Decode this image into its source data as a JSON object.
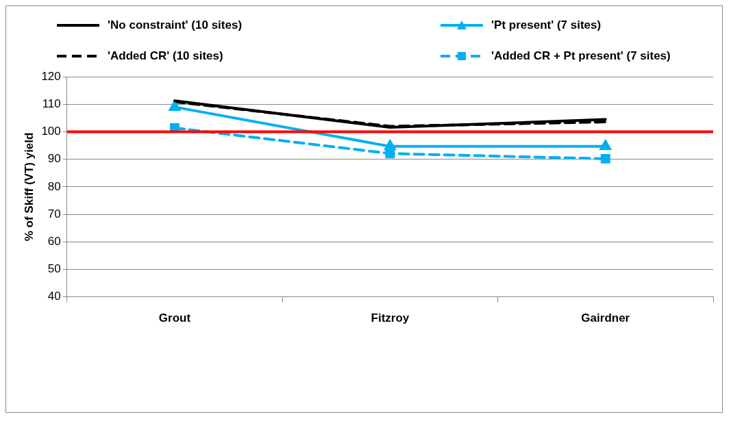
{
  "chart_data": {
    "type": "line",
    "ylabel": "% of Skiff (VT) yield",
    "categories": [
      "Grout",
      "Fitzroy",
      "Gairdner"
    ],
    "series": [
      {
        "name": "'No constraint' (10 sites)",
        "color": "#000000",
        "values": [
          111.3,
          101.6,
          104.5
        ],
        "marker": "none",
        "line_style": "solid"
      },
      {
        "name": "'Pt present' (7 sites)",
        "color": "#00b0f0",
        "values": [
          109,
          94.7,
          94.7
        ],
        "marker": "triangle",
        "line_style": "solid"
      },
      {
        "name": "'Added CR' (10 sites)",
        "color": "#000000",
        "values": [
          110.9,
          102,
          103.6
        ],
        "marker": "none",
        "line_style": "dashed"
      },
      {
        "name": "'Added CR + Pt present' (7 sites)",
        "color": "#00b0f0",
        "values": [
          101.4,
          92.1,
          90.2
        ],
        "marker": "square",
        "line_style": "dashed"
      }
    ],
    "ylim": [
      40,
      120
    ],
    "yticks": [
      40,
      50,
      60,
      70,
      80,
      90,
      100,
      110,
      120
    ],
    "grid": "y",
    "legend": "top",
    "ref_lines": [
      {
        "axis": "y",
        "value": 100,
        "color": "#ff0000"
      }
    ]
  }
}
